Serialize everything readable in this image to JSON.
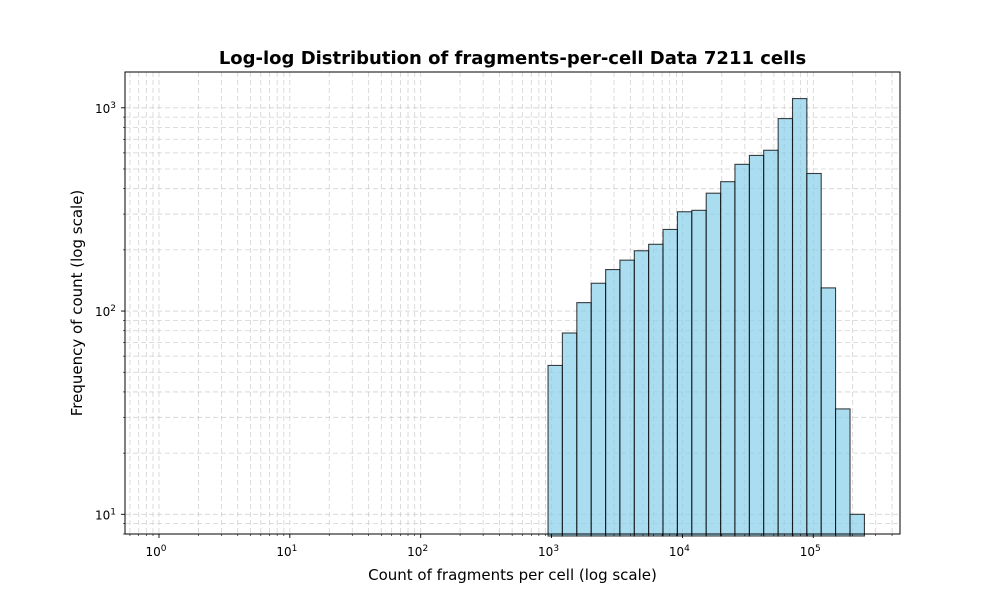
{
  "chart_data": {
    "type": "bar",
    "title": "Log-log Distribution of fragments-per-cell Data 7211 cells",
    "xlabel": "Count of fragments per cell (log scale)",
    "ylabel": "Frequency of count (log scale)",
    "x_scale": "log",
    "y_scale": "log",
    "xlim": [
      0.55,
      460000
    ],
    "ylim": [
      8.0,
      1500
    ],
    "grid": true,
    "x_ticks": [
      {
        "base": "10",
        "exp": "0",
        "value": 1
      },
      {
        "base": "10",
        "exp": "1",
        "value": 10
      },
      {
        "base": "10",
        "exp": "2",
        "value": 100
      },
      {
        "base": "10",
        "exp": "3",
        "value": 1000
      },
      {
        "base": "10",
        "exp": "4",
        "value": 10000
      },
      {
        "base": "10",
        "exp": "5",
        "value": 100000
      }
    ],
    "y_ticks": [
      {
        "base": "10",
        "exp": "1",
        "value": 10
      },
      {
        "base": "10",
        "exp": "2",
        "value": 100
      },
      {
        "base": "10",
        "exp": "3",
        "value": 1000
      }
    ],
    "bin_edges": [
      940,
      1210,
      1560,
      2010,
      2590,
      3330,
      4290,
      5520,
      7110,
      9160,
      11800,
      15200,
      19600,
      25200,
      32500,
      41800,
      53900,
      69400,
      89300,
      115000,
      148000,
      191000,
      246000
    ],
    "values": [
      54,
      78,
      110,
      137,
      160,
      178,
      198,
      213,
      252,
      308,
      313,
      380,
      433,
      527,
      583,
      618,
      885,
      1110,
      475,
      130,
      33,
      10
    ],
    "bar_color": "#87ceeb",
    "edge_color": "#000000"
  }
}
